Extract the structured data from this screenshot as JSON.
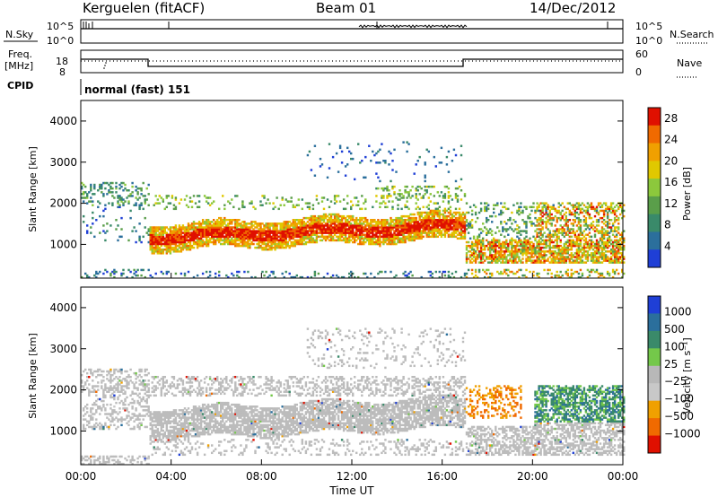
{
  "header": {
    "radar": "Kerguelen (fitACF)",
    "beam": "Beam 01",
    "date": "14/Dec/2012"
  },
  "colors": {
    "power_scale": [
      "#1f3fd6",
      "#2b6f9c",
      "#3a8a6a",
      "#5a9e4a",
      "#8cc83c",
      "#e0c800",
      "#f0a000",
      "#f06a00",
      "#e01000"
    ],
    "velocity_scale": [
      "#e01000",
      "#f06a00",
      "#f0a000",
      "#c8c8c8",
      "#b8b8b8",
      "#74c84a",
      "#3a8a6a",
      "#2b6f9c",
      "#1f3fd6"
    ],
    "ground_scatter": "#bcbcbc"
  },
  "panels": {
    "nsky": {
      "label": "N.Sky",
      "left_ticks": [
        "10^5",
        "10^0"
      ],
      "right_ticks": [
        "10^5",
        "10^0"
      ],
      "right_label": "N.Search"
    },
    "freq": {
      "label_line1": "Freq.",
      "label_line2": "[MHz]",
      "left_ticks": [
        "18",
        "8"
      ],
      "right_ticks": [
        "60",
        "0"
      ],
      "right_label": "Nave"
    },
    "cpid": {
      "label": "CPID",
      "text": "normal (fast) 151"
    }
  },
  "chart_data": [
    {
      "type": "heatmap",
      "title": "",
      "ylabel": "Slant Range [km]",
      "xlabel": "",
      "ylim": [
        180,
        4500
      ],
      "yticks": [
        "1000",
        "2000",
        "3000",
        "4000"
      ],
      "xticks": [
        "00:00",
        "04:00",
        "08:00",
        "12:00",
        "16:00",
        "20:00",
        "00:00"
      ],
      "colorbar": {
        "label": "Power [dB]",
        "ticks": [
          "4",
          "8",
          "12",
          "16",
          "20",
          "24",
          "28"
        ],
        "range": [
          0,
          30
        ]
      }
    },
    {
      "type": "heatmap",
      "title": "",
      "ylabel": "Slant Range [km]",
      "xlabel": "Time UT",
      "ylim": [
        180,
        4500
      ],
      "yticks": [
        "1000",
        "2000",
        "3000",
        "4000"
      ],
      "xticks": [
        "00:00",
        "04:00",
        "08:00",
        "12:00",
        "16:00",
        "20:00",
        "00:00"
      ],
      "colorbar": {
        "label": "Velocity [m s⁻¹]",
        "ticks": [
          "1000",
          "500",
          "100",
          "25",
          "−25",
          "−100",
          "−500",
          "−1000"
        ]
      }
    }
  ]
}
